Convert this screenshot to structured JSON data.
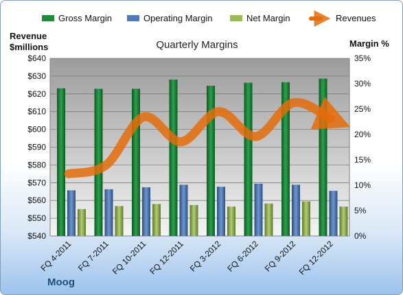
{
  "chart_data": {
    "type": "bar",
    "title": "Quarterly Margins",
    "footer": "Moog",
    "y_left_label_line1": "Revenue",
    "y_left_label_line2": "$millions",
    "y_right_label": "Margin %",
    "categories": [
      "FQ 4-2011",
      "FQ 7-2011",
      "FQ 10-2011",
      "FQ 12-2011",
      "FQ 3-2012",
      "FQ 6-2012",
      "FQ 9-2012",
      "FQ 12-2012"
    ],
    "series": [
      {
        "name": "Gross Margin",
        "axis": "right",
        "values": [
          29.1,
          29.0,
          29.0,
          30.8,
          29.6,
          30.2,
          30.3,
          31.0
        ],
        "color": "#1e8c3c"
      },
      {
        "name": "Operating Margin",
        "axis": "right",
        "values": [
          9.0,
          9.2,
          9.6,
          10.1,
          9.7,
          10.3,
          10.1,
          8.9
        ],
        "color": "#4f7ab8"
      },
      {
        "name": "Net Margin",
        "axis": "right",
        "values": [
          5.3,
          5.9,
          6.3,
          6.1,
          5.8,
          6.4,
          6.8,
          5.8
        ],
        "color": "#9bbb59"
      },
      {
        "name": "Revenues",
        "axis": "left",
        "type": "line",
        "values": [
          575,
          580,
          607,
          593,
          610,
          596,
          615,
          606
        ],
        "color": "#e46c0a"
      }
    ],
    "y_left": {
      "min": 540,
      "max": 640,
      "step": 10,
      "format": "$"
    },
    "y_right": {
      "min": 0,
      "max": 35,
      "step": 5,
      "format": "%"
    },
    "grid": true,
    "legend_position": "top"
  }
}
